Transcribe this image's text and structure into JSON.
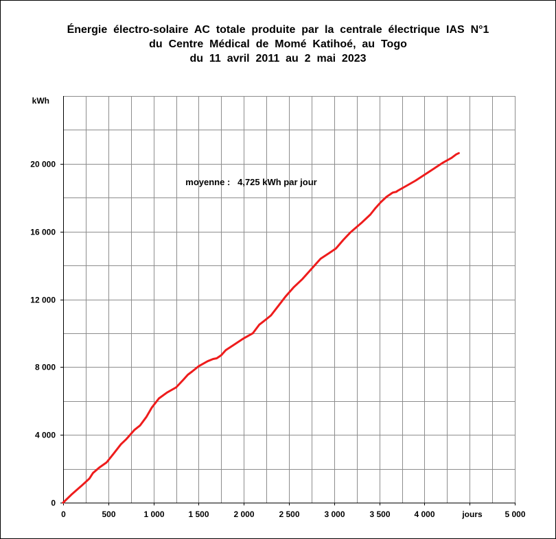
{
  "chart_data": {
    "type": "line",
    "title_lines": [
      "Énergie  électro-solaire  AC  totale  produite  par  la  centrale  électrique  IAS  N°1",
      "du  Centre  Médical  de  Momé  Katihoé,  au  Togo",
      "du  11  avril  2011  au  2  mai  2023"
    ],
    "ylabel": "kWh",
    "xlabel": "jours",
    "annotation": "moyenne :   4,725 kWh par jour",
    "xlim": [
      0,
      5000
    ],
    "ylim": [
      0,
      24000
    ],
    "x_ticks": [
      0,
      500,
      1000,
      1500,
      2000,
      2500,
      3000,
      3500,
      4000,
      4500,
      5000
    ],
    "x_tick_labels": [
      "0",
      "500",
      "1 000",
      "1 500",
      "2 000",
      "2 500",
      "3 000",
      "3 500",
      "4 000",
      "",
      "5 000"
    ],
    "y_ticks": [
      0,
      4000,
      8000,
      12000,
      16000,
      20000
    ],
    "y_tick_labels": [
      "0",
      "4 000",
      "8 000",
      "12 000",
      "16 000",
      "20 000"
    ],
    "x_minor_step": 250,
    "y_minor_step": 2000,
    "grid": true,
    "series": [
      {
        "color": "#ee1c1c",
        "x": [
          0,
          100,
          200,
          290,
          330,
          400,
          480,
          560,
          640,
          700,
          790,
          850,
          920,
          980,
          1060,
          1150,
          1250,
          1330,
          1380,
          1430,
          1500,
          1600,
          1660,
          1700,
          1750,
          1800,
          1900,
          2000,
          2100,
          2170,
          2230,
          2300,
          2380,
          2460,
          2550,
          2650,
          2750,
          2850,
          2950,
          3020,
          3100,
          3180,
          3300,
          3400,
          3460,
          3520,
          3580,
          3650,
          3690,
          3700,
          3800,
          3900,
          4000,
          4100,
          4200,
          4300,
          4350,
          4380
        ],
        "y": [
          0,
          520,
          980,
          1420,
          1750,
          2070,
          2370,
          2900,
          3450,
          3750,
          4300,
          4550,
          5050,
          5600,
          6150,
          6500,
          6800,
          7250,
          7550,
          7750,
          8050,
          8350,
          8480,
          8520,
          8700,
          9000,
          9350,
          9700,
          10000,
          10500,
          10750,
          11050,
          11600,
          12150,
          12700,
          13200,
          13800,
          14400,
          14750,
          15000,
          15500,
          15950,
          16500,
          17000,
          17400,
          17750,
          18050,
          18300,
          18350,
          18400,
          18700,
          19000,
          19350,
          19700,
          20050,
          20350,
          20550,
          20630
        ]
      }
    ]
  }
}
